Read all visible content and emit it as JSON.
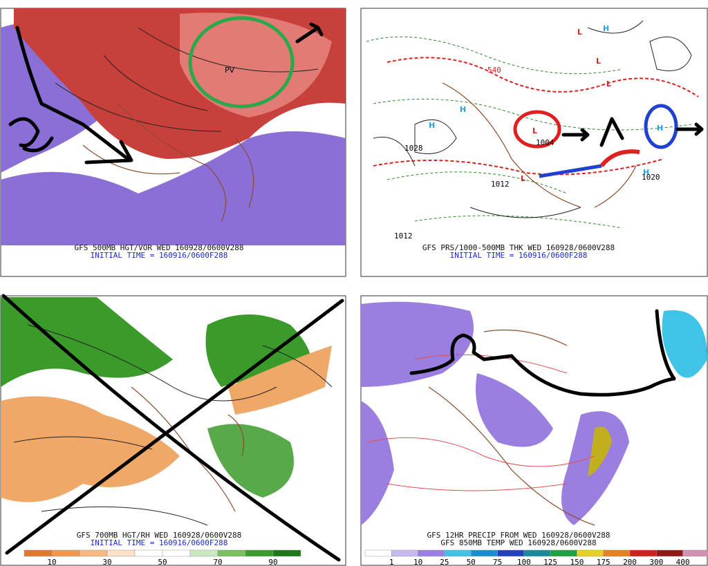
{
  "panels": [
    {
      "caption": [
        "GFS 500MB HGT/VOR WED 160928/0600V288",
        "INITIAL TIME = 160916/0600F288"
      ],
      "annotation": "PV"
    },
    {
      "caption": [
        "GFS PRS/1000-500MB THK WED 160928/0600V288",
        "INITIAL TIME = 160916/0600F288"
      ],
      "labels": [
        "H",
        "H",
        "L",
        "L",
        "L",
        "L",
        "H",
        "H",
        "H",
        "L",
        "1028",
        "1012",
        "1020",
        "1012",
        "540",
        "1004"
      ]
    },
    {
      "caption": [
        "GFS 700MB HGT/RH WED 160928/0600V288",
        "INITIAL TIME = 160916/0600F288"
      ],
      "colorbar": [
        10,
        30,
        50,
        70,
        90
      ]
    },
    {
      "caption": [
        "GFS 12HR PRECIP FROM WED 160928/0600V288",
        "GFS 850MB TEMP WED 160928/0600V288"
      ],
      "colorbar": [
        1,
        10,
        25,
        50,
        75,
        100,
        125,
        150,
        175,
        200,
        300,
        400
      ]
    }
  ]
}
